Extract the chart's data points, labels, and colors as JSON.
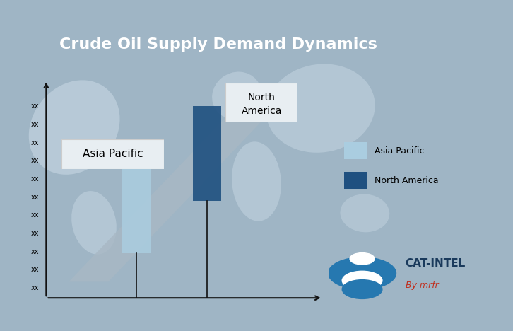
{
  "title": "Crude Oil Supply Demand Dynamics",
  "title_bg": "#1b3f6b",
  "title_color": "#ffffff",
  "outer_bg": "#9fb5c5",
  "inner_bg": "#b8cdd9",
  "y_ticks": [
    "xx",
    "xx",
    "xx",
    "xx",
    "xx",
    "xx",
    "xx",
    "xx",
    "xx",
    "xx",
    "xx"
  ],
  "asia_pacific_label": "Asia Pacific",
  "north_america_label": "North America",
  "legend_asia_color": "#aacde0",
  "legend_north_color": "#1f5080",
  "gray_band_color": "#a8b8c4",
  "asia_bar_color": "#aacde0",
  "north_bar_color": "#1f5080",
  "axis_color": "#111111",
  "label_box_color": "#e8eef2",
  "label_box_edge": "#cccccc",
  "legend_bg": "#dce8f0",
  "watermark_text1": "CAT-INTEL",
  "watermark_text2": "By mrfr",
  "logo_color": "#2678b0"
}
